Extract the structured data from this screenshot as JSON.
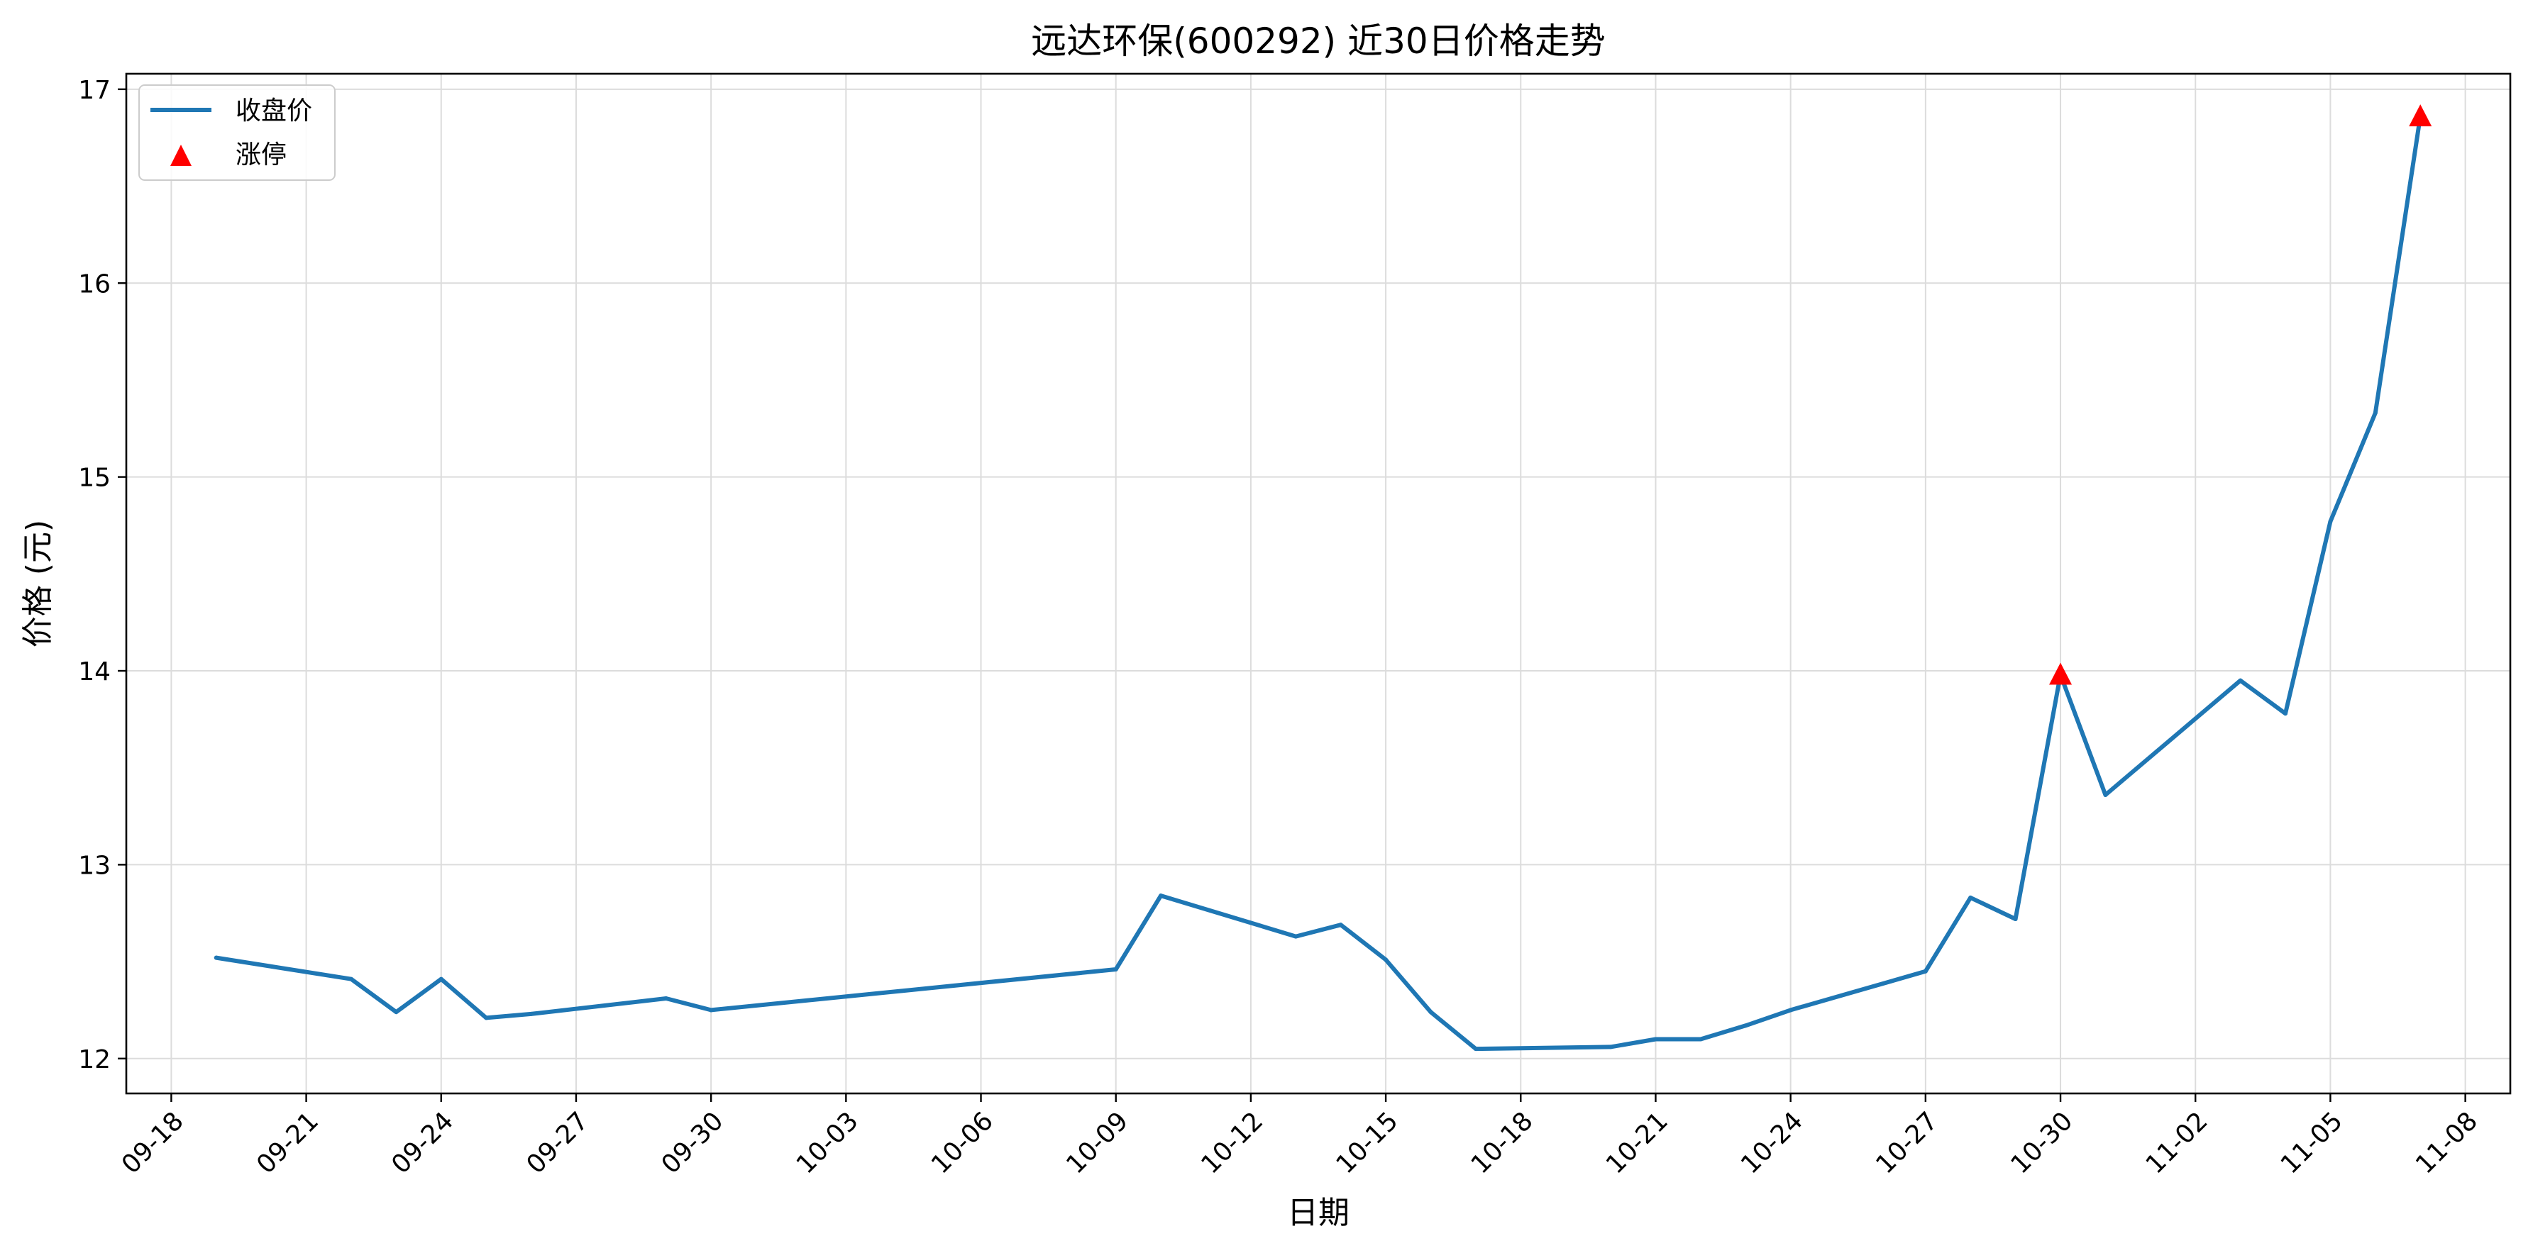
{
  "chart_data": {
    "type": "line",
    "title": "远达环保(600292) 近30日价格走势",
    "xlabel": "日期",
    "ylabel": "价格 (元)",
    "x_ticks": [
      "09-18",
      "09-21",
      "09-24",
      "09-27",
      "09-30",
      "10-03",
      "10-06",
      "10-09",
      "10-12",
      "10-15",
      "10-18",
      "10-21",
      "10-24",
      "10-27",
      "10-30",
      "11-02",
      "11-05",
      "11-08"
    ],
    "y_ticks": [
      12,
      13,
      14,
      15,
      16,
      17
    ],
    "xlim": [
      "09-17",
      "11-09"
    ],
    "ylim": [
      11.82,
      17.08
    ],
    "grid": true,
    "legend_position": "top-left",
    "series": [
      {
        "name": "收盘价",
        "kind": "line",
        "color": "#1f77b4",
        "points": [
          {
            "x": "09-19",
            "y": 12.52
          },
          {
            "x": "09-22",
            "y": 12.41
          },
          {
            "x": "09-23",
            "y": 12.24
          },
          {
            "x": "09-24",
            "y": 12.41
          },
          {
            "x": "09-25",
            "y": 12.21
          },
          {
            "x": "09-26",
            "y": 12.23
          },
          {
            "x": "09-29",
            "y": 12.31
          },
          {
            "x": "09-30",
            "y": 12.25
          },
          {
            "x": "10-09",
            "y": 12.46
          },
          {
            "x": "10-10",
            "y": 12.84
          },
          {
            "x": "10-13",
            "y": 12.63
          },
          {
            "x": "10-14",
            "y": 12.69
          },
          {
            "x": "10-15",
            "y": 12.51
          },
          {
            "x": "10-16",
            "y": 12.24
          },
          {
            "x": "10-17",
            "y": 12.05
          },
          {
            "x": "10-20",
            "y": 12.06
          },
          {
            "x": "10-21",
            "y": 12.1
          },
          {
            "x": "10-22",
            "y": 12.1
          },
          {
            "x": "10-23",
            "y": 12.17
          },
          {
            "x": "10-24",
            "y": 12.25
          },
          {
            "x": "10-27",
            "y": 12.45
          },
          {
            "x": "10-28",
            "y": 12.83
          },
          {
            "x": "10-29",
            "y": 12.72
          },
          {
            "x": "10-30",
            "y": 13.98
          },
          {
            "x": "10-31",
            "y": 13.36
          },
          {
            "x": "11-03",
            "y": 13.95
          },
          {
            "x": "11-04",
            "y": 13.78
          },
          {
            "x": "11-05",
            "y": 14.77
          },
          {
            "x": "11-06",
            "y": 15.33
          },
          {
            "x": "11-07",
            "y": 16.86
          }
        ]
      },
      {
        "name": "涨停",
        "kind": "marker",
        "marker": "triangle-up",
        "color": "#ff0000",
        "points": [
          {
            "x": "10-30",
            "y": 13.98
          },
          {
            "x": "11-07",
            "y": 16.86
          }
        ]
      }
    ]
  }
}
